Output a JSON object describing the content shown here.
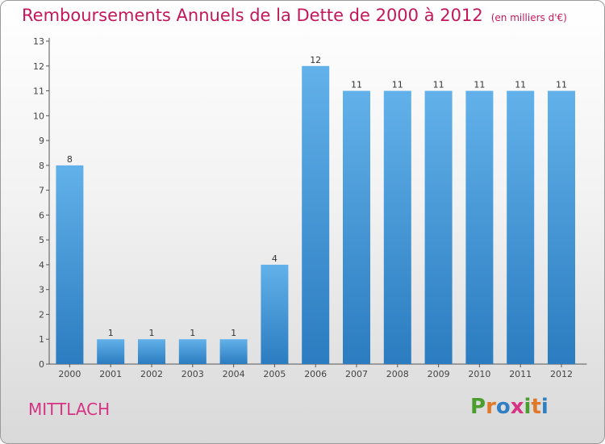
{
  "header": {
    "title": "Remboursements Annuels de la Dette de 2000 à 2012",
    "unit": "(en milliers d'€)"
  },
  "footer": {
    "commune": "MITTLACH",
    "brand": "Proxiti"
  },
  "colors": {
    "bar_light": "#62b1ea",
    "bar_dark": "#2b7cc0",
    "title": "#c2185b",
    "brand_letters": [
      "#4b9e2e",
      "#e0782a",
      "#2f7fc4",
      "#d63384",
      "#4b9e2e",
      "#e0782a",
      "#2f7fc4"
    ]
  },
  "chart_data": {
    "type": "bar",
    "categories": [
      "2000",
      "2001",
      "2002",
      "2003",
      "2004",
      "2005",
      "2006",
      "2007",
      "2008",
      "2009",
      "2010",
      "2011",
      "2012"
    ],
    "values": [
      8,
      1,
      1,
      1,
      1,
      4,
      12,
      11,
      11,
      11,
      11,
      11,
      11
    ],
    "data_labels": [
      "8",
      "1",
      "1",
      "1",
      "1",
      "4",
      "12",
      "11",
      "11",
      "11",
      "11",
      "11",
      "11"
    ],
    "yticks": [
      "0",
      "1",
      "2",
      "3",
      "4",
      "5",
      "6",
      "7",
      "8",
      "9",
      "10",
      "11",
      "12",
      "13"
    ],
    "ylim": [
      0,
      13
    ],
    "grid": false,
    "legend": "none"
  }
}
